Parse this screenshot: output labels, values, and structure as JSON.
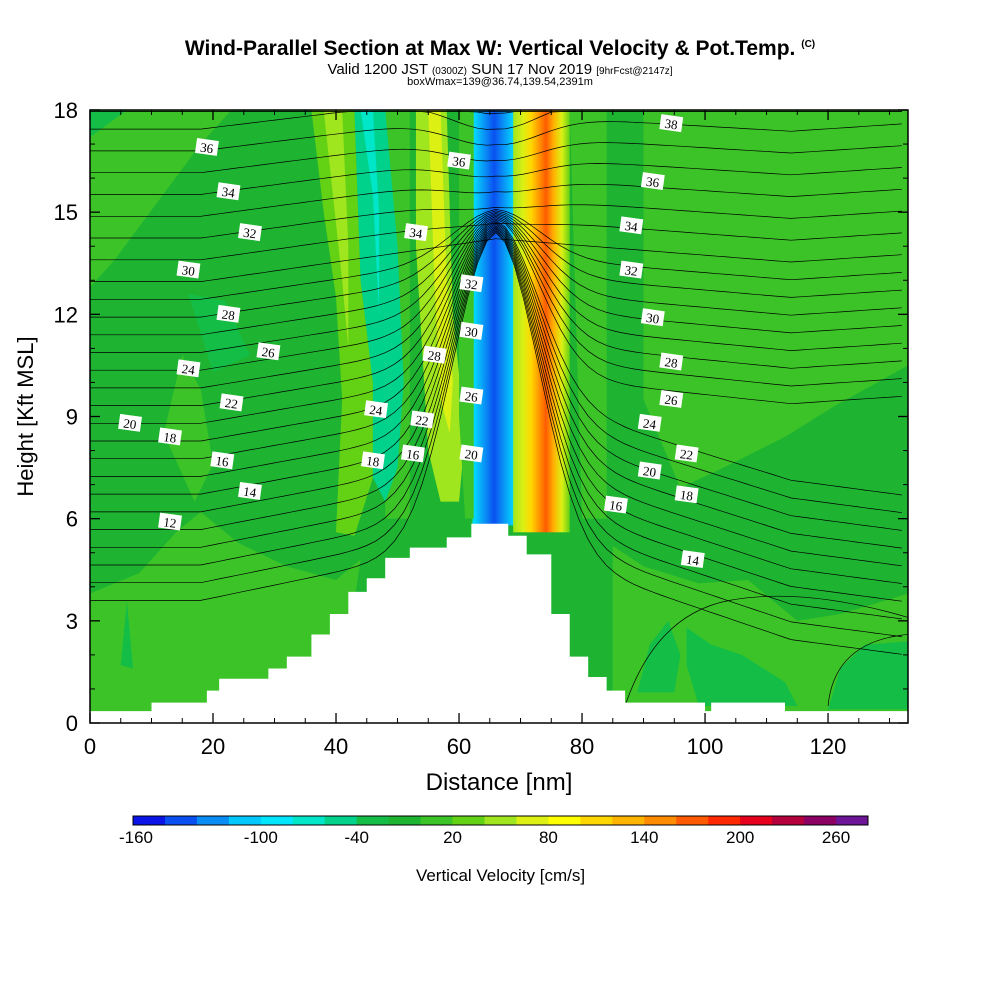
{
  "title": {
    "main": "Wind-Parallel Section at Max W: Vertical Velocity & Pot.Temp.",
    "copyright": "(C)",
    "valid_prefix": "Valid 1200 JST",
    "valid_utc": "(0300Z)",
    "valid_date": "SUN 17 Nov 2019",
    "forecast": "[9hrFcst@2147z]",
    "box_info": "boxWmax=139@36.74,139.54,2391m"
  },
  "chart_data": {
    "type": "heatmap",
    "xlabel": "Distance [nm]",
    "ylabel": "Height [Kft MSL]",
    "xlim": [
      0,
      133
    ],
    "ylim": [
      0,
      18
    ],
    "x_ticks": [
      "0",
      "20",
      "40",
      "60",
      "80",
      "100",
      "120"
    ],
    "y_ticks": [
      "0",
      "3",
      "6",
      "9",
      "12",
      "15",
      "18"
    ],
    "colorbar": {
      "label": "Vertical Velocity [cm/s]",
      "tick_labels": [
        "-160",
        "-100",
        "-40",
        "20",
        "80",
        "140",
        "200",
        "260"
      ],
      "levels": [
        -160,
        -140,
        -120,
        -100,
        -80,
        -60,
        -40,
        -20,
        0,
        20,
        40,
        60,
        80,
        100,
        120,
        140,
        160,
        180,
        200,
        220,
        240,
        260
      ],
      "colors": [
        "#0a14e6",
        "#0a50f0",
        "#0a8cf5",
        "#00c8ff",
        "#00e6ff",
        "#00e6c8",
        "#00d28c",
        "#14be46",
        "#1eb432",
        "#3cc328",
        "#64d214",
        "#a0e61e",
        "#dcf014",
        "#ffff00",
        "#ffd700",
        "#ffb400",
        "#ff8c00",
        "#ff5a00",
        "#ff2800",
        "#e6001e",
        "#b4003c",
        "#8c0064",
        "#6e1496"
      ]
    },
    "terrain": {
      "description_units": "x in nm, height in kft",
      "profile": [
        [
          0,
          0.35
        ],
        [
          10,
          0.35
        ],
        [
          10,
          0.6
        ],
        [
          19,
          0.6
        ],
        [
          19,
          0.95
        ],
        [
          21,
          0.95
        ],
        [
          21,
          1.3
        ],
        [
          29,
          1.3
        ],
        [
          29,
          1.6
        ],
        [
          32,
          1.6
        ],
        [
          32,
          1.95
        ],
        [
          36,
          1.95
        ],
        [
          36,
          2.6
        ],
        [
          39,
          2.6
        ],
        [
          39,
          3.2
        ],
        [
          42,
          3.2
        ],
        [
          42,
          3.85
        ],
        [
          45,
          3.85
        ],
        [
          45,
          4.25
        ],
        [
          48,
          4.25
        ],
        [
          48,
          4.85
        ],
        [
          52,
          4.85
        ],
        [
          52,
          5.15
        ],
        [
          58,
          5.15
        ],
        [
          58,
          5.45
        ],
        [
          62,
          5.45
        ],
        [
          62,
          5.85
        ],
        [
          68,
          5.85
        ],
        [
          68,
          5.5
        ],
        [
          71,
          5.5
        ],
        [
          71,
          4.95
        ],
        [
          75,
          4.95
        ],
        [
          75,
          3.2
        ],
        [
          78,
          3.2
        ],
        [
          78,
          1.95
        ],
        [
          81,
          1.95
        ],
        [
          81,
          1.35
        ],
        [
          84,
          1.35
        ],
        [
          84,
          0.95
        ],
        [
          87,
          0.95
        ],
        [
          87,
          0.6
        ],
        [
          100,
          0.6
        ],
        [
          100,
          0.35
        ],
        [
          101,
          0.35
        ],
        [
          101,
          0.6
        ],
        [
          113,
          0.6
        ],
        [
          113,
          0.35
        ],
        [
          133,
          0.35
        ]
      ]
    },
    "vertical_velocity_features": [
      {
        "label": "updraft-core",
        "center_x": 71.5,
        "peak_cm_s": 160
      },
      {
        "label": "downdraft-core",
        "center_x": 65.5,
        "peak_cm_s": -140
      },
      {
        "label": "lee-updraft",
        "center_x": 59.5,
        "peak_cm_s": 60
      },
      {
        "label": "lee-downdraft",
        "center_x": 47,
        "peak_cm_s": -80
      },
      {
        "label": "upper-updraft",
        "center_x": 39.5,
        "peak_cm_s": 40
      },
      {
        "label": "upper-downdraft",
        "center_x": 82,
        "peak_cm_s": -40
      }
    ],
    "theta_contour_labels": [
      {
        "text": "36",
        "x": 19,
        "y": 16.9
      },
      {
        "text": "34",
        "x": 22.5,
        "y": 15.6
      },
      {
        "text": "32",
        "x": 26,
        "y": 14.4
      },
      {
        "text": "30",
        "x": 16,
        "y": 13.3
      },
      {
        "text": "28",
        "x": 22.5,
        "y": 12.0
      },
      {
        "text": "26",
        "x": 29,
        "y": 10.9
      },
      {
        "text": "24",
        "x": 16,
        "y": 10.4
      },
      {
        "text": "22",
        "x": 23,
        "y": 9.4
      },
      {
        "text": "20",
        "x": 6.5,
        "y": 8.8
      },
      {
        "text": "18",
        "x": 13,
        "y": 8.4
      },
      {
        "text": "16",
        "x": 21.5,
        "y": 7.7
      },
      {
        "text": "14",
        "x": 26,
        "y": 6.8
      },
      {
        "text": "12",
        "x": 13,
        "y": 5.9
      },
      {
        "text": "36",
        "x": 60,
        "y": 16.5
      },
      {
        "text": "34",
        "x": 53,
        "y": 14.4
      },
      {
        "text": "32",
        "x": 62,
        "y": 12.9
      },
      {
        "text": "30",
        "x": 62,
        "y": 11.5
      },
      {
        "text": "28",
        "x": 56,
        "y": 10.8
      },
      {
        "text": "26",
        "x": 62,
        "y": 9.6
      },
      {
        "text": "24",
        "x": 46.5,
        "y": 9.2
      },
      {
        "text": "22",
        "x": 54,
        "y": 8.9
      },
      {
        "text": "20",
        "x": 62,
        "y": 7.9
      },
      {
        "text": "18",
        "x": 46,
        "y": 7.7
      },
      {
        "text": "16",
        "x": 52.5,
        "y": 7.9
      },
      {
        "text": "38",
        "x": 94.5,
        "y": 17.6
      },
      {
        "text": "36",
        "x": 91.5,
        "y": 15.9
      },
      {
        "text": "34",
        "x": 88,
        "y": 14.6
      },
      {
        "text": "32",
        "x": 88,
        "y": 13.3
      },
      {
        "text": "30",
        "x": 91.5,
        "y": 11.9
      },
      {
        "text": "28",
        "x": 94.5,
        "y": 10.6
      },
      {
        "text": "26",
        "x": 94.5,
        "y": 9.5
      },
      {
        "text": "24",
        "x": 91,
        "y": 8.8
      },
      {
        "text": "22",
        "x": 97,
        "y": 7.9
      },
      {
        "text": "20",
        "x": 91,
        "y": 7.4
      },
      {
        "text": "18",
        "x": 97,
        "y": 6.7
      },
      {
        "text": "16",
        "x": 85.5,
        "y": 6.4
      },
      {
        "text": "14",
        "x": 98,
        "y": 4.8
      }
    ],
    "grid": false,
    "legend": "colorbar-bottom"
  }
}
